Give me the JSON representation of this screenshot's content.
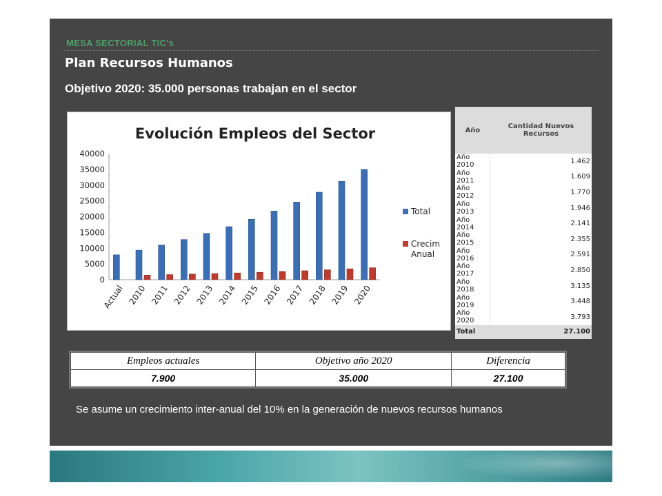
{
  "header": {
    "section": "MESA SECTORIAL  TIC’s",
    "title": "Plan Recursos Humanos",
    "objective": "Objetivo 2020:  35.000 personas trabajan en el sector"
  },
  "chart_data": {
    "type": "bar",
    "title": "Evolución Empleos del Sector",
    "categories": [
      "Actual",
      "2010",
      "2011",
      "2012",
      "2013",
      "2014",
      "2015",
      "2016",
      "2017",
      "2018",
      "2019",
      "2020"
    ],
    "series": [
      {
        "name": "Total",
        "color": "#3a6fb8",
        "values": [
          7900,
          9362,
          10971,
          12741,
          14687,
          16828,
          19183,
          21774,
          24624,
          27759,
          31207,
          35000
        ]
      },
      {
        "name": "Crecim Anual",
        "color": "#c0392b",
        "values": [
          0,
          1462,
          1609,
          1770,
          1946,
          2141,
          2355,
          2591,
          2850,
          3135,
          3448,
          3793
        ]
      }
    ],
    "yticks": [
      "0",
      "5000",
      "10000",
      "15000",
      "20000",
      "25000",
      "30000",
      "35000",
      "40000"
    ],
    "ylim": [
      0,
      40000
    ],
    "legend": "right"
  },
  "resources_table": {
    "header_year": "Año",
    "header_qty": "Cantidad Nuevos Recursos",
    "rows": [
      {
        "year": "Año 2010",
        "qty": "1.462"
      },
      {
        "year": "Año 2011",
        "qty": "1.609"
      },
      {
        "year": "Año 2012",
        "qty": "1.770"
      },
      {
        "year": "Año 2013",
        "qty": "1.946"
      },
      {
        "year": "Año 2014",
        "qty": "2.141"
      },
      {
        "year": "Año 2015",
        "qty": "2.355"
      },
      {
        "year": "Año 2016",
        "qty": "2.591"
      },
      {
        "year": "Año 2017",
        "qty": "2.850"
      },
      {
        "year": "Año 2018",
        "qty": "3.135"
      },
      {
        "year": "Año 2019",
        "qty": "3.448"
      },
      {
        "year": "Año 2020",
        "qty": "3.793"
      }
    ],
    "total_label": "Total",
    "total_value": "27.100"
  },
  "summary_table": {
    "headers": [
      "Empleos actuales",
      "Objetivo  año 2020",
      "Diferencia"
    ],
    "values": [
      "7.900",
      "35.000",
      "27.100"
    ]
  },
  "note": "Se asume un crecimiento inter-anual  del 10% en la generación de nuevos recursos humanos"
}
